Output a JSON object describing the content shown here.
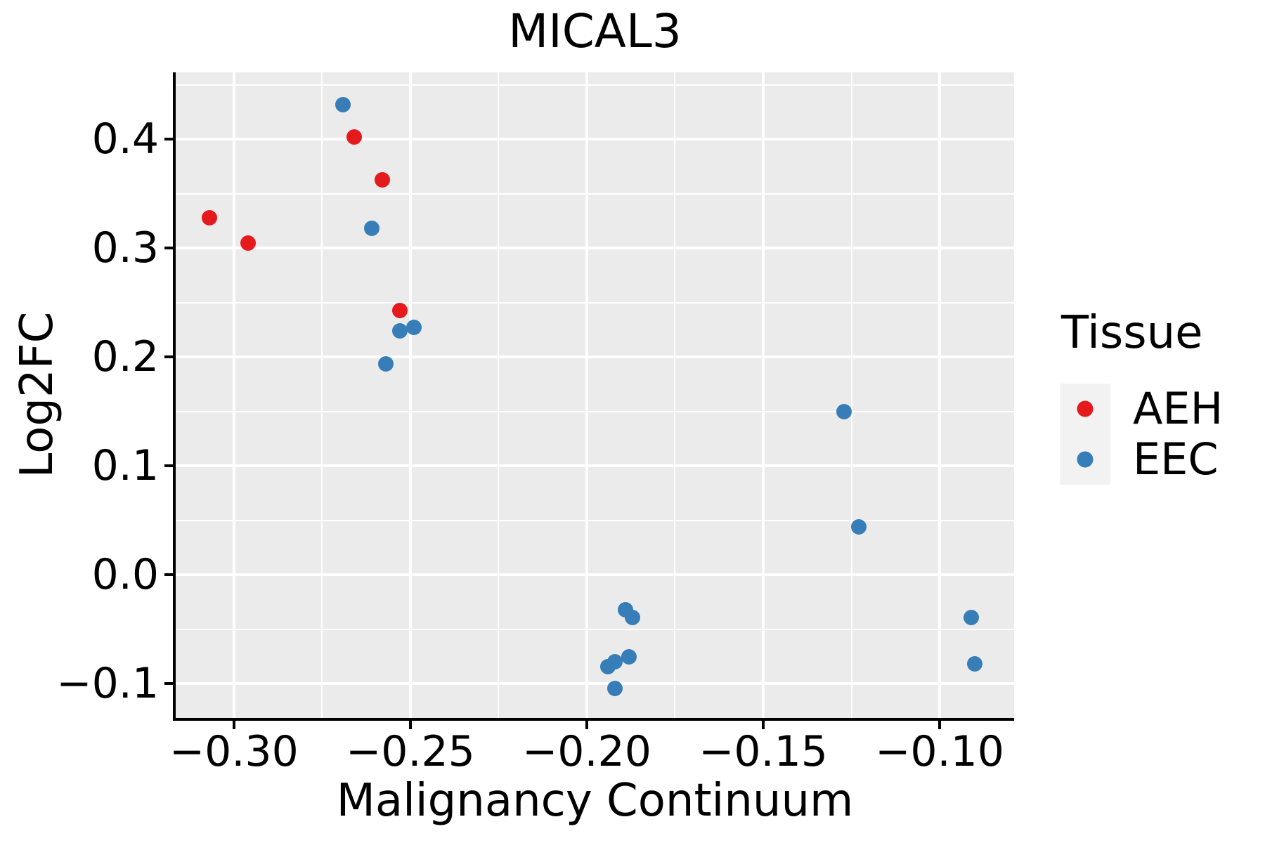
{
  "title": "MICAL3",
  "axes": {
    "x_label": "Malignancy Continuum",
    "y_label": "Log2FC"
  },
  "legend": {
    "title": "Tissue",
    "items": [
      {
        "label": "AEH",
        "color": "#e41a1c"
      },
      {
        "label": "EEC",
        "color": "#377eb8"
      }
    ]
  },
  "colors": {
    "panel_background": "#ebebeb",
    "gridline": "#ffffff",
    "axis_and_text": "#000000",
    "legend_key_background": "#f2f2f2",
    "aeh_red": "#e41a1c",
    "eec_blue": "#377eb8"
  },
  "chart_data": {
    "type": "scatter",
    "title": "MICAL3",
    "xlabel": "Malignancy Continuum",
    "ylabel": "Log2FC",
    "xlim": [
      -0.3165,
      -0.0789
    ],
    "ylim": [
      -0.1314,
      0.4615
    ],
    "grid": "on",
    "legend_position": "right",
    "x_ticks": [
      {
        "value": -0.3,
        "label": "−0.30"
      },
      {
        "value": -0.25,
        "label": "−0.25"
      },
      {
        "value": -0.2,
        "label": "−0.20"
      },
      {
        "value": -0.15,
        "label": "−0.15"
      },
      {
        "value": -0.1,
        "label": "−0.10"
      }
    ],
    "y_ticks": [
      {
        "value": 0.4,
        "label": "0.4"
      },
      {
        "value": 0.3,
        "label": "0.3"
      },
      {
        "value": 0.2,
        "label": "0.2"
      },
      {
        "value": 0.1,
        "label": "0.1"
      },
      {
        "value": 0.0,
        "label": "0.0"
      },
      {
        "value": -0.1,
        "label": "−0.1"
      }
    ],
    "x_minor_ticks": [
      -0.275,
      -0.225,
      -0.175,
      -0.125
    ],
    "y_minor_ticks": [
      0.45,
      0.35,
      0.25,
      0.15,
      0.05,
      -0.05
    ],
    "series": [
      {
        "name": "EEC",
        "color": "#377eb8",
        "points": [
          [
            -0.269,
            0.432
          ],
          [
            -0.261,
            0.318
          ],
          [
            -0.257,
            0.194
          ],
          [
            -0.253,
            0.224
          ],
          [
            -0.249,
            0.227
          ],
          [
            -0.189,
            -0.032
          ],
          [
            -0.187,
            -0.039
          ],
          [
            -0.188,
            -0.075
          ],
          [
            -0.192,
            -0.08
          ],
          [
            -0.194,
            -0.084
          ],
          [
            -0.192,
            -0.104
          ],
          [
            -0.127,
            0.15
          ],
          [
            -0.123,
            0.044
          ],
          [
            -0.091,
            -0.039
          ],
          [
            -0.09,
            -0.082
          ]
        ]
      },
      {
        "name": "AEH",
        "color": "#e41a1c",
        "points": [
          [
            -0.307,
            0.328
          ],
          [
            -0.296,
            0.305
          ],
          [
            -0.266,
            0.402
          ],
          [
            -0.258,
            0.363
          ],
          [
            -0.253,
            0.243
          ]
        ]
      }
    ]
  }
}
